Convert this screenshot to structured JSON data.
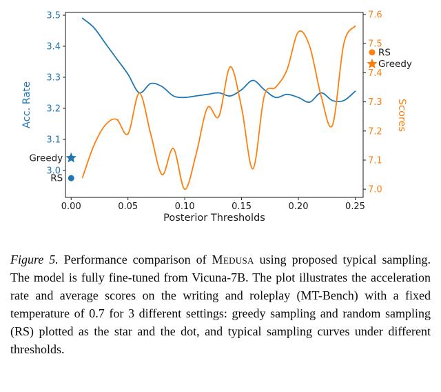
{
  "caption": {
    "label": "Figure 5.",
    "text_before": " Performance comparison of ",
    "medusa": "Medusa",
    "text_after": " using proposed typical sampling. The model is fully fine-tuned from Vicuna-7B. The plot illustrates the acceleration rate and average scores on the writing and roleplay (MT-Bench) with a fixed temperature of 0.7 for 3 different settings: greedy sampling and random sampling (RS) plotted as the star and the dot, and typical sampling curves under different thresholds."
  },
  "chart_data": {
    "type": "line",
    "title": "",
    "x_axis": {
      "label": "Posterior Thresholds",
      "ticks": [
        "0.00",
        "0.05",
        "0.10",
        "0.15",
        "0.20",
        "0.25"
      ],
      "range": [
        -0.005,
        0.257
      ]
    },
    "left_axis": {
      "label": "Acc. Rate",
      "color": "#1f77b4",
      "ticks": [
        "3.0",
        "3.1",
        "3.2",
        "3.3",
        "3.4",
        "3.5"
      ],
      "range": [
        2.913,
        3.509
      ]
    },
    "right_axis": {
      "label": "Scores",
      "color": "#ff7f0e",
      "ticks": [
        "7.0",
        "7.1",
        "7.2",
        "7.3",
        "7.4",
        "7.5",
        "7.6"
      ],
      "range": [
        6.972,
        7.607
      ]
    },
    "x": [
      0.01,
      0.02,
      0.03,
      0.04,
      0.05,
      0.06,
      0.07,
      0.08,
      0.09,
      0.1,
      0.11,
      0.12,
      0.13,
      0.14,
      0.15,
      0.16,
      0.17,
      0.18,
      0.19,
      0.2,
      0.21,
      0.22,
      0.23,
      0.24,
      0.25
    ],
    "series": [
      {
        "name": "Acceleration Rate",
        "axis": "left",
        "color": "#1f77b4",
        "values": [
          3.49,
          3.46,
          3.41,
          3.36,
          3.31,
          3.25,
          3.28,
          3.27,
          3.24,
          3.235,
          3.24,
          3.245,
          3.25,
          3.24,
          3.26,
          3.29,
          3.26,
          3.235,
          3.245,
          3.235,
          3.22,
          3.25,
          3.225,
          3.225,
          3.255
        ]
      },
      {
        "name": "Scores",
        "axis": "right",
        "color": "#ff7f0e",
        "values": [
          7.04,
          7.15,
          7.22,
          7.24,
          7.19,
          7.33,
          7.19,
          7.05,
          7.14,
          7.0,
          7.12,
          7.28,
          7.25,
          7.42,
          7.28,
          7.07,
          7.32,
          7.35,
          7.41,
          7.54,
          7.49,
          7.32,
          7.22,
          7.5,
          7.56
        ]
      }
    ],
    "point_markers": {
      "left": [
        {
          "label": "Greedy",
          "shape": "star",
          "x": 0.0,
          "value": 3.04
        },
        {
          "label": "RS",
          "shape": "dot",
          "x": 0.0,
          "value": 2.975
        }
      ],
      "right": [
        {
          "label": "RS",
          "shape": "dot",
          "value": 7.47
        },
        {
          "label": "Greedy",
          "shape": "star",
          "value": 7.43
        }
      ]
    },
    "grid": false,
    "legend_position": "outside-right"
  }
}
